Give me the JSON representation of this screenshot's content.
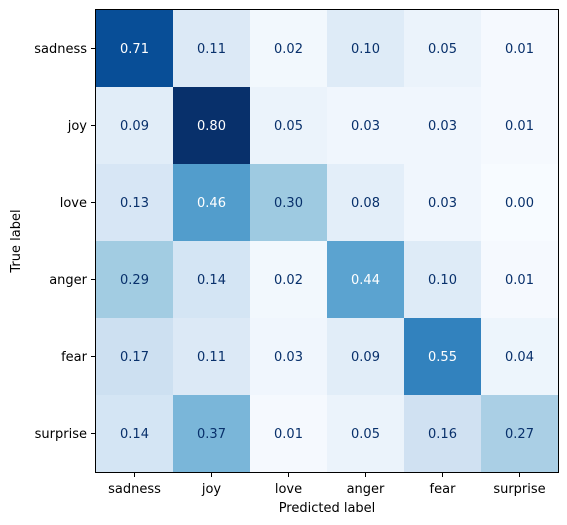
{
  "chart_data": {
    "type": "heatmap",
    "title": "",
    "xlabel": "Predicted label",
    "ylabel": "True label",
    "x_categories": [
      "sadness",
      "joy",
      "love",
      "anger",
      "fear",
      "surprise"
    ],
    "y_categories": [
      "sadness",
      "joy",
      "love",
      "anger",
      "fear",
      "surprise"
    ],
    "values": [
      [
        0.71,
        0.11,
        0.02,
        0.1,
        0.05,
        0.01
      ],
      [
        0.09,
        0.8,
        0.05,
        0.03,
        0.03,
        0.01
      ],
      [
        0.13,
        0.46,
        0.3,
        0.08,
        0.03,
        0.0
      ],
      [
        0.29,
        0.14,
        0.02,
        0.44,
        0.1,
        0.01
      ],
      [
        0.17,
        0.11,
        0.03,
        0.09,
        0.55,
        0.04
      ],
      [
        0.14,
        0.37,
        0.01,
        0.05,
        0.16,
        0.27
      ]
    ],
    "value_labels": [
      [
        "0.71",
        "0.11",
        "0.02",
        "0.10",
        "0.05",
        "0.01"
      ],
      [
        "0.09",
        "0.80",
        "0.05",
        "0.03",
        "0.03",
        "0.01"
      ],
      [
        "0.13",
        "0.46",
        "0.30",
        "0.08",
        "0.03",
        "0.00"
      ],
      [
        "0.29",
        "0.14",
        "0.02",
        "0.44",
        "0.10",
        "0.01"
      ],
      [
        "0.17",
        "0.11",
        "0.03",
        "0.09",
        "0.55",
        "0.04"
      ],
      [
        "0.14",
        "0.37",
        "0.01",
        "0.05",
        "0.16",
        "0.27"
      ]
    ],
    "colormap": "Blues",
    "color_range": [
      0.0,
      0.8
    ],
    "grid": false,
    "colors": {
      "text_light": "#ffffff",
      "text_dark": "#08306b",
      "axis": "#000000"
    }
  }
}
